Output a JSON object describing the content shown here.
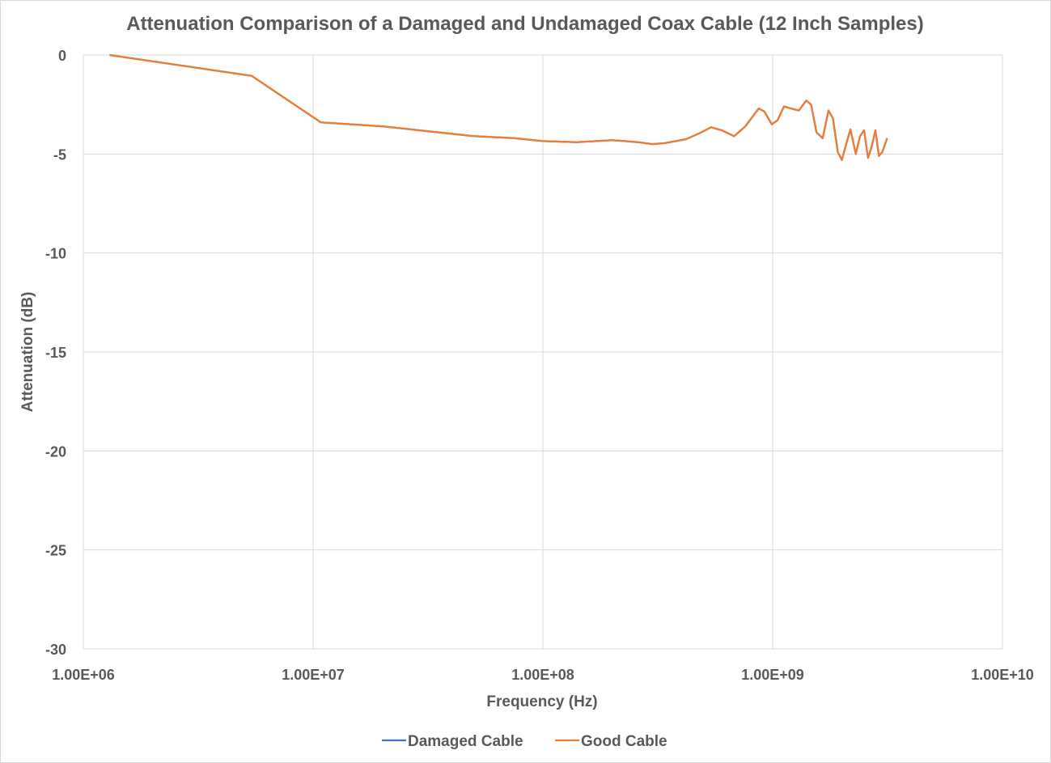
{
  "chart_data": {
    "type": "line",
    "title": "Attenuation Comparison of a Damaged and Undamaged Coax Cable (12 Inch Samples)",
    "xlabel": "Frequency (Hz)",
    "ylabel": "Attenuation (dB)",
    "x_scale": "log",
    "xlim": [
      1000000,
      10000000000
    ],
    "ylim": [
      -30,
      0
    ],
    "x_ticks": [
      1000000,
      10000000,
      100000000,
      1000000000,
      10000000000
    ],
    "x_tick_labels": [
      "1.00E+06",
      "1.00E+07",
      "1.00E+08",
      "1.00E+09",
      "1.00E+10"
    ],
    "y_ticks": [
      0,
      -5,
      -10,
      -15,
      -20,
      -25,
      -30
    ],
    "y_tick_labels": [
      "0",
      "-5",
      "-10",
      "-15",
      "-20",
      "-25",
      "-30"
    ],
    "grid": true,
    "legend_position": "bottom",
    "series": [
      {
        "name": "Damaged Cable",
        "color": "#4472c4",
        "x": [
          1300000,
          5400000,
          10800000,
          20000000,
          50000000,
          75000000,
          100000000,
          140000000,
          200000000,
          260000000,
          300000000,
          340000000,
          420000000,
          480000000,
          540000000,
          600000000,
          680000000,
          760000000,
          870000000,
          920000000,
          990000000,
          1050000000,
          1120000000,
          1200000000,
          1300000000,
          1400000000,
          1470000000,
          1550000000,
          1650000000,
          1750000000,
          1830000000,
          1920000000,
          2000000000,
          2100000000,
          2180000000,
          2300000000,
          2400000000,
          2500000000,
          2600000000,
          2700000000,
          2800000000,
          2900000000,
          3000000000,
          3150000000
        ],
        "y": [
          0,
          -1.05,
          -3.4,
          -3.6,
          -4.1,
          -4.2,
          -4.35,
          -4.4,
          -4.3,
          -4.4,
          -4.5,
          -4.45,
          -4.25,
          -3.95,
          -3.65,
          -3.8,
          -4.1,
          -3.6,
          -2.7,
          -2.85,
          -3.5,
          -3.3,
          -2.6,
          -2.7,
          -2.8,
          -2.3,
          -2.5,
          -3.9,
          -4.2,
          -2.8,
          -3.2,
          -4.9,
          -5.3,
          -4.4,
          -3.75,
          -5.0,
          -4.1,
          -3.8,
          -5.2,
          -4.6,
          -3.8,
          -5.1,
          -4.9,
          -4.2
        ]
      },
      {
        "name": "Good Cable",
        "color": "#ed7d31",
        "x": [
          1300000,
          5400000,
          10800000,
          20000000,
          50000000,
          75000000,
          100000000,
          140000000,
          200000000,
          260000000,
          300000000,
          340000000,
          420000000,
          480000000,
          540000000,
          600000000,
          680000000,
          760000000,
          870000000,
          920000000,
          990000000,
          1050000000,
          1120000000,
          1200000000,
          1300000000,
          1400000000,
          1470000000,
          1550000000,
          1650000000,
          1750000000,
          1830000000,
          1920000000,
          2000000000,
          2100000000,
          2180000000,
          2300000000,
          2400000000,
          2500000000,
          2600000000,
          2700000000,
          2800000000,
          2900000000,
          3000000000,
          3150000000
        ],
        "y": [
          0,
          -1.05,
          -3.4,
          -3.6,
          -4.1,
          -4.2,
          -4.35,
          -4.4,
          -4.3,
          -4.4,
          -4.5,
          -4.45,
          -4.25,
          -3.95,
          -3.65,
          -3.8,
          -4.1,
          -3.6,
          -2.7,
          -2.85,
          -3.5,
          -3.3,
          -2.6,
          -2.7,
          -2.8,
          -2.3,
          -2.5,
          -3.9,
          -4.2,
          -2.8,
          -3.2,
          -4.9,
          -5.3,
          -4.4,
          -3.75,
          -5.0,
          -4.1,
          -3.8,
          -5.2,
          -4.6,
          -3.8,
          -5.1,
          -4.9,
          -4.2
        ]
      }
    ]
  }
}
